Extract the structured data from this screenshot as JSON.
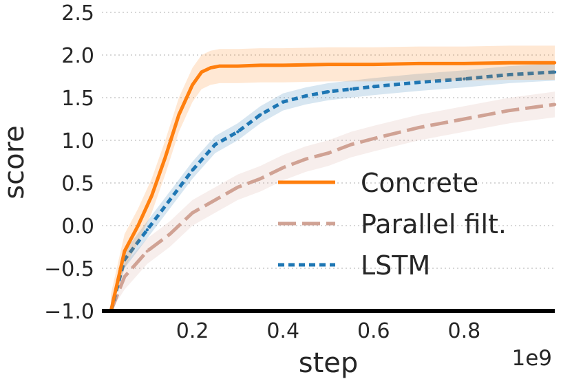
{
  "chart_data": {
    "type": "line",
    "xlabel": "step",
    "ylabel": "score",
    "x_offset_label": "1e9",
    "xlim": [
      0.0,
      1.0
    ],
    "ylim": [
      -1.0,
      2.5
    ],
    "xticks": [
      0.2,
      0.4,
      0.6,
      0.8
    ],
    "xtick_labels": [
      "0.2",
      "0.4",
      "0.6",
      "0.8"
    ],
    "yticks": [
      -1.0,
      -0.5,
      0.0,
      0.5,
      1.0,
      1.5,
      2.0,
      2.5
    ],
    "ytick_labels": [
      "−1.0",
      "−0.5",
      "0.0",
      "0.5",
      "1.0",
      "1.5",
      "2.0",
      "2.5"
    ],
    "grid": "horizontal dotted",
    "legend_position": "lower-right",
    "series": [
      {
        "name": "Concrete",
        "color": "#ff7f0e",
        "dash": "solid",
        "band": 0.2,
        "x": [
          0.02,
          0.05,
          0.08,
          0.11,
          0.14,
          0.17,
          0.2,
          0.22,
          0.24,
          0.26,
          0.3,
          0.35,
          0.4,
          0.5,
          0.6,
          0.7,
          0.8,
          0.9,
          1.0
        ],
        "y": [
          -1.0,
          -0.3,
          0.0,
          0.35,
          0.8,
          1.3,
          1.65,
          1.8,
          1.85,
          1.87,
          1.87,
          1.88,
          1.88,
          1.89,
          1.89,
          1.9,
          1.9,
          1.91,
          1.91
        ]
      },
      {
        "name": "Parallel filt.",
        "color": "#d0a294",
        "dash": "long-dash",
        "band": 0.15,
        "x": [
          0.02,
          0.05,
          0.1,
          0.15,
          0.2,
          0.25,
          0.3,
          0.35,
          0.4,
          0.45,
          0.5,
          0.55,
          0.6,
          0.7,
          0.8,
          0.9,
          1.0
        ],
        "y": [
          -1.0,
          -0.6,
          -0.3,
          -0.1,
          0.15,
          0.3,
          0.45,
          0.55,
          0.68,
          0.78,
          0.85,
          0.95,
          1.02,
          1.15,
          1.25,
          1.35,
          1.42
        ]
      },
      {
        "name": "LSTM",
        "color": "#1f77b4",
        "dash": "short-dash",
        "band": 0.1,
        "x": [
          0.02,
          0.05,
          0.1,
          0.15,
          0.2,
          0.25,
          0.3,
          0.35,
          0.4,
          0.45,
          0.5,
          0.55,
          0.6,
          0.7,
          0.8,
          0.9,
          1.0
        ],
        "y": [
          -1.0,
          -0.4,
          -0.05,
          0.3,
          0.65,
          0.95,
          1.1,
          1.3,
          1.45,
          1.52,
          1.57,
          1.6,
          1.63,
          1.68,
          1.72,
          1.77,
          1.8
        ]
      }
    ]
  }
}
